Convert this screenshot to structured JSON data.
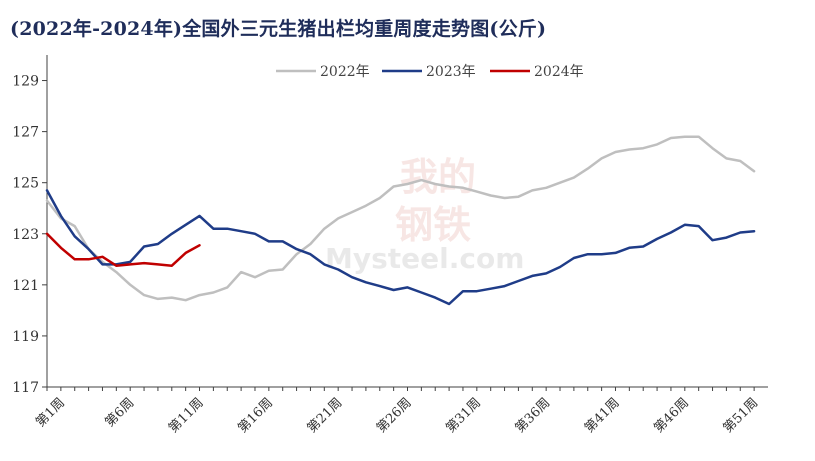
{
  "title": "(2022年-2024年)全国外三元生猪出栏均重周度走势图(公斤)",
  "watermark": {
    "text_top": "我的",
    "text_mid": "钢铁",
    "text_bottom": "Mysteel.com"
  },
  "chart_data": {
    "type": "line",
    "title": "(2022年-2024年)全国外三元生猪出栏均重周度走势图(公斤)",
    "xlabel": "",
    "ylabel": "",
    "ylim": [
      117,
      130
    ],
    "yticks": [
      117,
      119,
      121,
      123,
      125,
      127,
      129
    ],
    "xlim": [
      1,
      53
    ],
    "xticks": [
      {
        "week": 1,
        "label": "第1周"
      },
      {
        "week": 6,
        "label": "第6周"
      },
      {
        "week": 11,
        "label": "第11周"
      },
      {
        "week": 16,
        "label": "第16周"
      },
      {
        "week": 21,
        "label": "第21周"
      },
      {
        "week": 26,
        "label": "第26周"
      },
      {
        "week": 31,
        "label": "第31周"
      },
      {
        "week": 36,
        "label": "第36周"
      },
      {
        "week": 41,
        "label": "第41周"
      },
      {
        "week": 46,
        "label": "第46周"
      },
      {
        "week": 51,
        "label": "第51周"
      }
    ],
    "grid": false,
    "legend_position": "top-center",
    "series": [
      {
        "name": "2022年",
        "color": "#bfbfbf",
        "x": [
          1,
          2,
          3,
          4,
          5,
          6,
          7,
          8,
          9,
          10,
          11,
          12,
          13,
          14,
          15,
          16,
          17,
          18,
          19,
          20,
          21,
          22,
          23,
          24,
          25,
          26,
          27,
          28,
          29,
          30,
          31,
          32,
          33,
          34,
          35,
          36,
          37,
          38,
          39,
          40,
          41,
          42,
          43,
          44,
          45,
          46,
          47,
          48,
          49,
          50,
          51,
          52
        ],
        "values": [
          124.3,
          123.6,
          123.3,
          122.4,
          121.9,
          121.5,
          121.0,
          120.6,
          120.45,
          120.5,
          120.4,
          120.6,
          120.7,
          120.9,
          121.5,
          121.3,
          121.55,
          121.6,
          122.2,
          122.6,
          123.2,
          123.6,
          123.85,
          124.1,
          124.4,
          124.85,
          124.95,
          125.1,
          124.95,
          124.85,
          124.8,
          124.65,
          124.5,
          124.4,
          124.45,
          124.7,
          124.8,
          125.0,
          125.2,
          125.55,
          125.95,
          126.2,
          126.3,
          126.35,
          126.5,
          126.75,
          126.8,
          126.8,
          126.35,
          125.95,
          125.85,
          125.45
        ]
      },
      {
        "name": "2023年",
        "color": "#1f3c88",
        "x": [
          1,
          2,
          3,
          4,
          5,
          6,
          7,
          8,
          9,
          10,
          11,
          12,
          13,
          14,
          15,
          16,
          17,
          18,
          19,
          20,
          21,
          22,
          23,
          24,
          25,
          26,
          27,
          28,
          29,
          30,
          31,
          32,
          33,
          34,
          35,
          36,
          37,
          38,
          39,
          40,
          41,
          42,
          43,
          44,
          45,
          46,
          47,
          48,
          49,
          50,
          51,
          52
        ],
        "values": [
          124.7,
          123.7,
          122.9,
          122.4,
          121.8,
          121.8,
          121.9,
          122.5,
          122.6,
          123.0,
          123.35,
          123.7,
          123.2,
          123.2,
          123.1,
          123.0,
          122.7,
          122.7,
          122.4,
          122.2,
          121.8,
          121.6,
          121.3,
          121.1,
          120.95,
          120.8,
          120.9,
          120.7,
          120.5,
          120.25,
          120.75,
          120.75,
          120.85,
          120.95,
          121.15,
          121.35,
          121.45,
          121.7,
          122.05,
          122.2,
          122.2,
          122.25,
          122.45,
          122.5,
          122.8,
          123.05,
          123.35,
          123.3,
          122.75,
          122.85,
          123.05,
          123.1
        ]
      },
      {
        "name": "2024年",
        "color": "#c00000",
        "x": [
          1,
          2,
          3,
          4,
          5,
          6,
          7,
          8,
          9,
          10,
          11,
          12
        ],
        "values": [
          123.0,
          122.45,
          122.0,
          122.0,
          122.1,
          121.75,
          121.8,
          121.85,
          121.8,
          121.75,
          122.25,
          122.55
        ]
      }
    ]
  }
}
